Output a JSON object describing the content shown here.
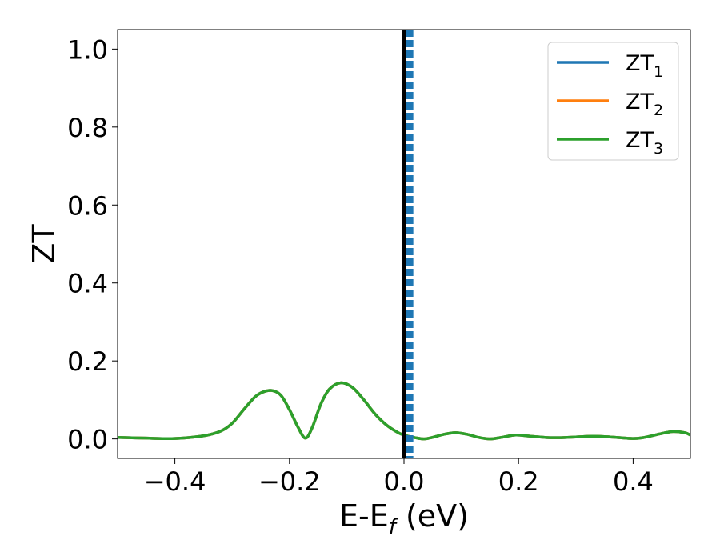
{
  "chart_data": {
    "type": "line",
    "xlabel": {
      "base": "E-E",
      "sub": "f",
      "suffix": " (eV)"
    },
    "ylabel": "ZT",
    "xlim": [
      -0.5,
      0.5
    ],
    "ylim": [
      -0.05,
      1.05
    ],
    "xticks": [
      -0.4,
      -0.2,
      0.0,
      0.2,
      0.4
    ],
    "xtick_labels": [
      "−0.4",
      "−0.2",
      "0.0",
      "0.2",
      "0.4"
    ],
    "yticks": [
      0.0,
      0.2,
      0.4,
      0.6,
      0.8,
      1.0
    ],
    "ytick_labels": [
      "0.0",
      "0.2",
      "0.4",
      "0.6",
      "0.8",
      "1.0"
    ],
    "grid": false,
    "legend_position": "top-right",
    "series": [
      {
        "name": "ZT",
        "sub": "1",
        "color": "#1f77b4",
        "x": [
          -0.5,
          -0.45,
          -0.4,
          -0.35,
          -0.32,
          -0.3,
          -0.28,
          -0.26,
          -0.245,
          -0.23,
          -0.215,
          -0.2,
          -0.185,
          -0.172,
          -0.16,
          -0.145,
          -0.13,
          -0.11,
          -0.09,
          -0.07,
          -0.05,
          -0.03,
          -0.01,
          0.0,
          0.01,
          0.02,
          0.035,
          0.05,
          0.07,
          0.09,
          0.11,
          0.13,
          0.15,
          0.17,
          0.195,
          0.22,
          0.26,
          0.3,
          0.33,
          0.36,
          0.4,
          0.42,
          0.45,
          0.47,
          0.49,
          0.5
        ],
        "y": [
          0.004,
          0.002,
          0.001,
          0.008,
          0.02,
          0.04,
          0.075,
          0.108,
          0.121,
          0.124,
          0.112,
          0.075,
          0.03,
          0.002,
          0.03,
          0.09,
          0.128,
          0.144,
          0.132,
          0.1,
          0.063,
          0.035,
          0.016,
          0.01,
          0.006,
          0.003,
          0.0,
          0.004,
          0.012,
          0.016,
          0.012,
          0.004,
          0.0,
          0.004,
          0.01,
          0.007,
          0.003,
          0.005,
          0.007,
          0.005,
          0.001,
          0.004,
          0.014,
          0.019,
          0.016,
          0.01
        ]
      },
      {
        "name": "ZT",
        "sub": "2",
        "color": "#ff7f0e",
        "x": [
          -0.5,
          -0.45,
          -0.4,
          -0.35,
          -0.32,
          -0.3,
          -0.28,
          -0.26,
          -0.245,
          -0.23,
          -0.215,
          -0.2,
          -0.185,
          -0.172,
          -0.16,
          -0.145,
          -0.13,
          -0.11,
          -0.09,
          -0.07,
          -0.05,
          -0.03,
          -0.01,
          0.0,
          0.01,
          0.02,
          0.035,
          0.05,
          0.07,
          0.09,
          0.11,
          0.13,
          0.15,
          0.17,
          0.195,
          0.22,
          0.26,
          0.3,
          0.33,
          0.36,
          0.4,
          0.42,
          0.45,
          0.47,
          0.49,
          0.5
        ],
        "y": [
          0.004,
          0.002,
          0.001,
          0.008,
          0.02,
          0.04,
          0.075,
          0.108,
          0.121,
          0.124,
          0.112,
          0.075,
          0.03,
          0.002,
          0.03,
          0.09,
          0.128,
          0.144,
          0.132,
          0.1,
          0.063,
          0.035,
          0.016,
          0.01,
          0.006,
          0.003,
          0.0,
          0.004,
          0.012,
          0.016,
          0.012,
          0.004,
          0.0,
          0.004,
          0.01,
          0.007,
          0.003,
          0.005,
          0.007,
          0.005,
          0.001,
          0.004,
          0.014,
          0.019,
          0.016,
          0.01
        ]
      },
      {
        "name": "ZT",
        "sub": "3",
        "color": "#2ca02c",
        "x": [
          -0.5,
          -0.45,
          -0.4,
          -0.35,
          -0.32,
          -0.3,
          -0.28,
          -0.26,
          -0.245,
          -0.23,
          -0.215,
          -0.2,
          -0.185,
          -0.172,
          -0.16,
          -0.145,
          -0.13,
          -0.11,
          -0.09,
          -0.07,
          -0.05,
          -0.03,
          -0.01,
          0.0,
          0.01,
          0.02,
          0.035,
          0.05,
          0.07,
          0.09,
          0.11,
          0.13,
          0.15,
          0.17,
          0.195,
          0.22,
          0.26,
          0.3,
          0.33,
          0.36,
          0.4,
          0.42,
          0.45,
          0.47,
          0.49,
          0.5
        ],
        "y": [
          0.004,
          0.002,
          0.001,
          0.008,
          0.02,
          0.04,
          0.075,
          0.108,
          0.121,
          0.124,
          0.112,
          0.075,
          0.03,
          0.002,
          0.03,
          0.09,
          0.128,
          0.144,
          0.132,
          0.1,
          0.063,
          0.035,
          0.016,
          0.01,
          0.006,
          0.003,
          0.0,
          0.004,
          0.012,
          0.016,
          0.012,
          0.004,
          0.0,
          0.004,
          0.01,
          0.007,
          0.003,
          0.005,
          0.007,
          0.005,
          0.001,
          0.004,
          0.014,
          0.019,
          0.016,
          0.01
        ]
      }
    ],
    "reference_lines": [
      {
        "orientation": "vertical",
        "x": 0.0,
        "color": "#000000",
        "style": "solid"
      },
      {
        "orientation": "vertical",
        "x": 0.01,
        "color": "#1f77b4",
        "style": "dashed"
      }
    ]
  }
}
